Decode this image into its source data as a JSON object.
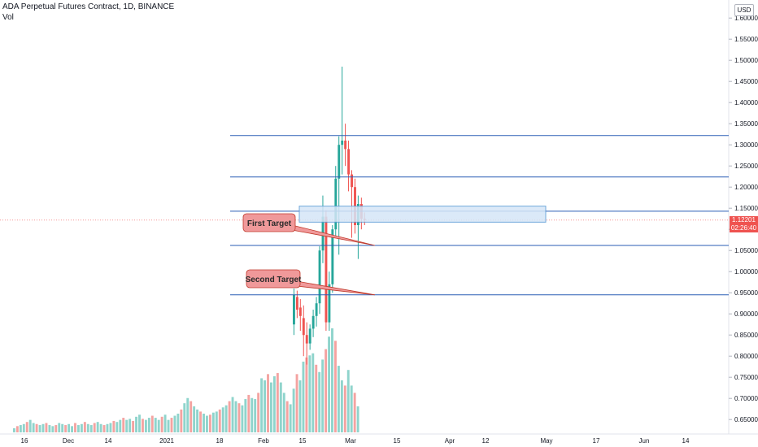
{
  "header": {
    "title": "ADA Perpetual Futures Contract, 1D, BINANCE",
    "volume_label": "Vol"
  },
  "currency_button": "USD",
  "current_price": {
    "value": "1.12201",
    "countdown": "02:26:40"
  },
  "colors": {
    "up": "#26a69a",
    "down": "#ef5350",
    "up_vol": "#8fd4cc",
    "down_vol": "#f4a3a1",
    "hline": "#2a5eb5",
    "zone_fill": "#d5e6f7",
    "zone_border": "#5b9bd5",
    "callout_fill": "#f0999a",
    "callout_border": "#c0392b"
  },
  "chart_data": {
    "type": "candlestick",
    "title": "ADA Perpetual Futures Contract, 1D, BINANCE",
    "y_axis": {
      "ticks": [
        "1.60000",
        "1.55000",
        "1.50000",
        "1.45000",
        "1.40000",
        "1.35000",
        "1.30000",
        "1.25000",
        "1.20000",
        "1.15000",
        "1.10000",
        "1.05000",
        "1.00000",
        "0.95000",
        "0.90000",
        "0.85000",
        "0.80000",
        "0.75000",
        "0.70000",
        "0.65000"
      ],
      "range": [
        0.635,
        1.61
      ]
    },
    "x_axis": {
      "ticks": [
        "16",
        "Dec",
        "14",
        "2021",
        "18",
        "Feb",
        "15",
        "Mar",
        "15",
        "Apr",
        "12",
        "May",
        "17",
        "Jun",
        "14"
      ]
    },
    "horizontal_lines": [
      1.322,
      1.224,
      1.143,
      1.062,
      0.945
    ],
    "zone": {
      "top": 1.155,
      "bottom": 1.117
    },
    "annotations": [
      {
        "text": "First Target",
        "target": 1.062
      },
      {
        "text": "Second Target",
        "target": 0.945
      }
    ],
    "candles": [
      {
        "o": 0.875,
        "h": 0.96,
        "l": 0.85,
        "c": 0.945
      },
      {
        "o": 0.94,
        "h": 0.955,
        "l": 0.89,
        "c": 0.91
      },
      {
        "o": 0.915,
        "h": 0.935,
        "l": 0.86,
        "c": 0.895
      },
      {
        "o": 0.89,
        "h": 0.92,
        "l": 0.8,
        "c": 0.85
      },
      {
        "o": 0.85,
        "h": 0.88,
        "l": 0.78,
        "c": 0.83
      },
      {
        "o": 0.83,
        "h": 0.875,
        "l": 0.815,
        "c": 0.865
      },
      {
        "o": 0.865,
        "h": 0.91,
        "l": 0.845,
        "c": 0.895
      },
      {
        "o": 0.895,
        "h": 0.94,
        "l": 0.87,
        "c": 0.925
      },
      {
        "o": 0.925,
        "h": 1.06,
        "l": 0.9,
        "c": 1.05
      },
      {
        "o": 1.05,
        "h": 1.18,
        "l": 1.02,
        "c": 1.13
      },
      {
        "o": 1.13,
        "h": 1.145,
        "l": 0.86,
        "c": 0.88
      },
      {
        "o": 0.88,
        "h": 1.0,
        "l": 0.86,
        "c": 0.97
      },
      {
        "o": 0.97,
        "h": 1.11,
        "l": 0.95,
        "c": 1.1
      },
      {
        "o": 1.1,
        "h": 1.25,
        "l": 1.08,
        "c": 1.22
      },
      {
        "o": 1.22,
        "h": 1.32,
        "l": 1.04,
        "c": 1.3
      },
      {
        "o": 1.3,
        "h": 1.485,
        "l": 1.23,
        "c": 1.31
      },
      {
        "o": 1.31,
        "h": 1.35,
        "l": 1.25,
        "c": 1.29
      },
      {
        "o": 1.29,
        "h": 1.31,
        "l": 1.19,
        "c": 1.23
      },
      {
        "o": 1.23,
        "h": 1.24,
        "l": 1.08,
        "c": 1.2
      },
      {
        "o": 1.2,
        "h": 1.22,
        "l": 1.09,
        "c": 1.11
      },
      {
        "o": 1.11,
        "h": 1.18,
        "l": 1.03,
        "c": 1.16
      },
      {
        "o": 1.16,
        "h": 1.175,
        "l": 1.1,
        "c": 1.125
      },
      {
        "o": 1.125,
        "h": 1.14,
        "l": 1.11,
        "c": 1.122
      }
    ],
    "volume": [
      0.04,
      0.06,
      0.07,
      0.08,
      0.1,
      0.12,
      0.09,
      0.08,
      0.07,
      0.08,
      0.09,
      0.07,
      0.06,
      0.07,
      0.09,
      0.08,
      0.07,
      0.08,
      0.06,
      0.09,
      0.07,
      0.08,
      0.1,
      0.08,
      0.07,
      0.09,
      0.1,
      0.08,
      0.07,
      0.08,
      0.09,
      0.11,
      0.1,
      0.12,
      0.14,
      0.12,
      0.13,
      0.11,
      0.15,
      0.17,
      0.13,
      0.12,
      0.14,
      0.16,
      0.14,
      0.12,
      0.15,
      0.17,
      0.12,
      0.14,
      0.16,
      0.18,
      0.22,
      0.28,
      0.33,
      0.3,
      0.25,
      0.22,
      0.2,
      0.18,
      0.16,
      0.17,
      0.19,
      0.2,
      0.22,
      0.24,
      0.26,
      0.3,
      0.34,
      0.3,
      0.28,
      0.26,
      0.32,
      0.36,
      0.33,
      0.32,
      0.38,
      0.52,
      0.5,
      0.56,
      0.48,
      0.54,
      0.57,
      0.48,
      0.38,
      0.3,
      0.27,
      0.42,
      0.56,
      0.5,
      0.68,
      0.72,
      0.74,
      0.76,
      0.65,
      0.58,
      0.7,
      0.8,
      0.92,
      1.0,
      0.88,
      0.64,
      0.5,
      0.45,
      0.6,
      0.45,
      0.38,
      0.25
    ]
  }
}
